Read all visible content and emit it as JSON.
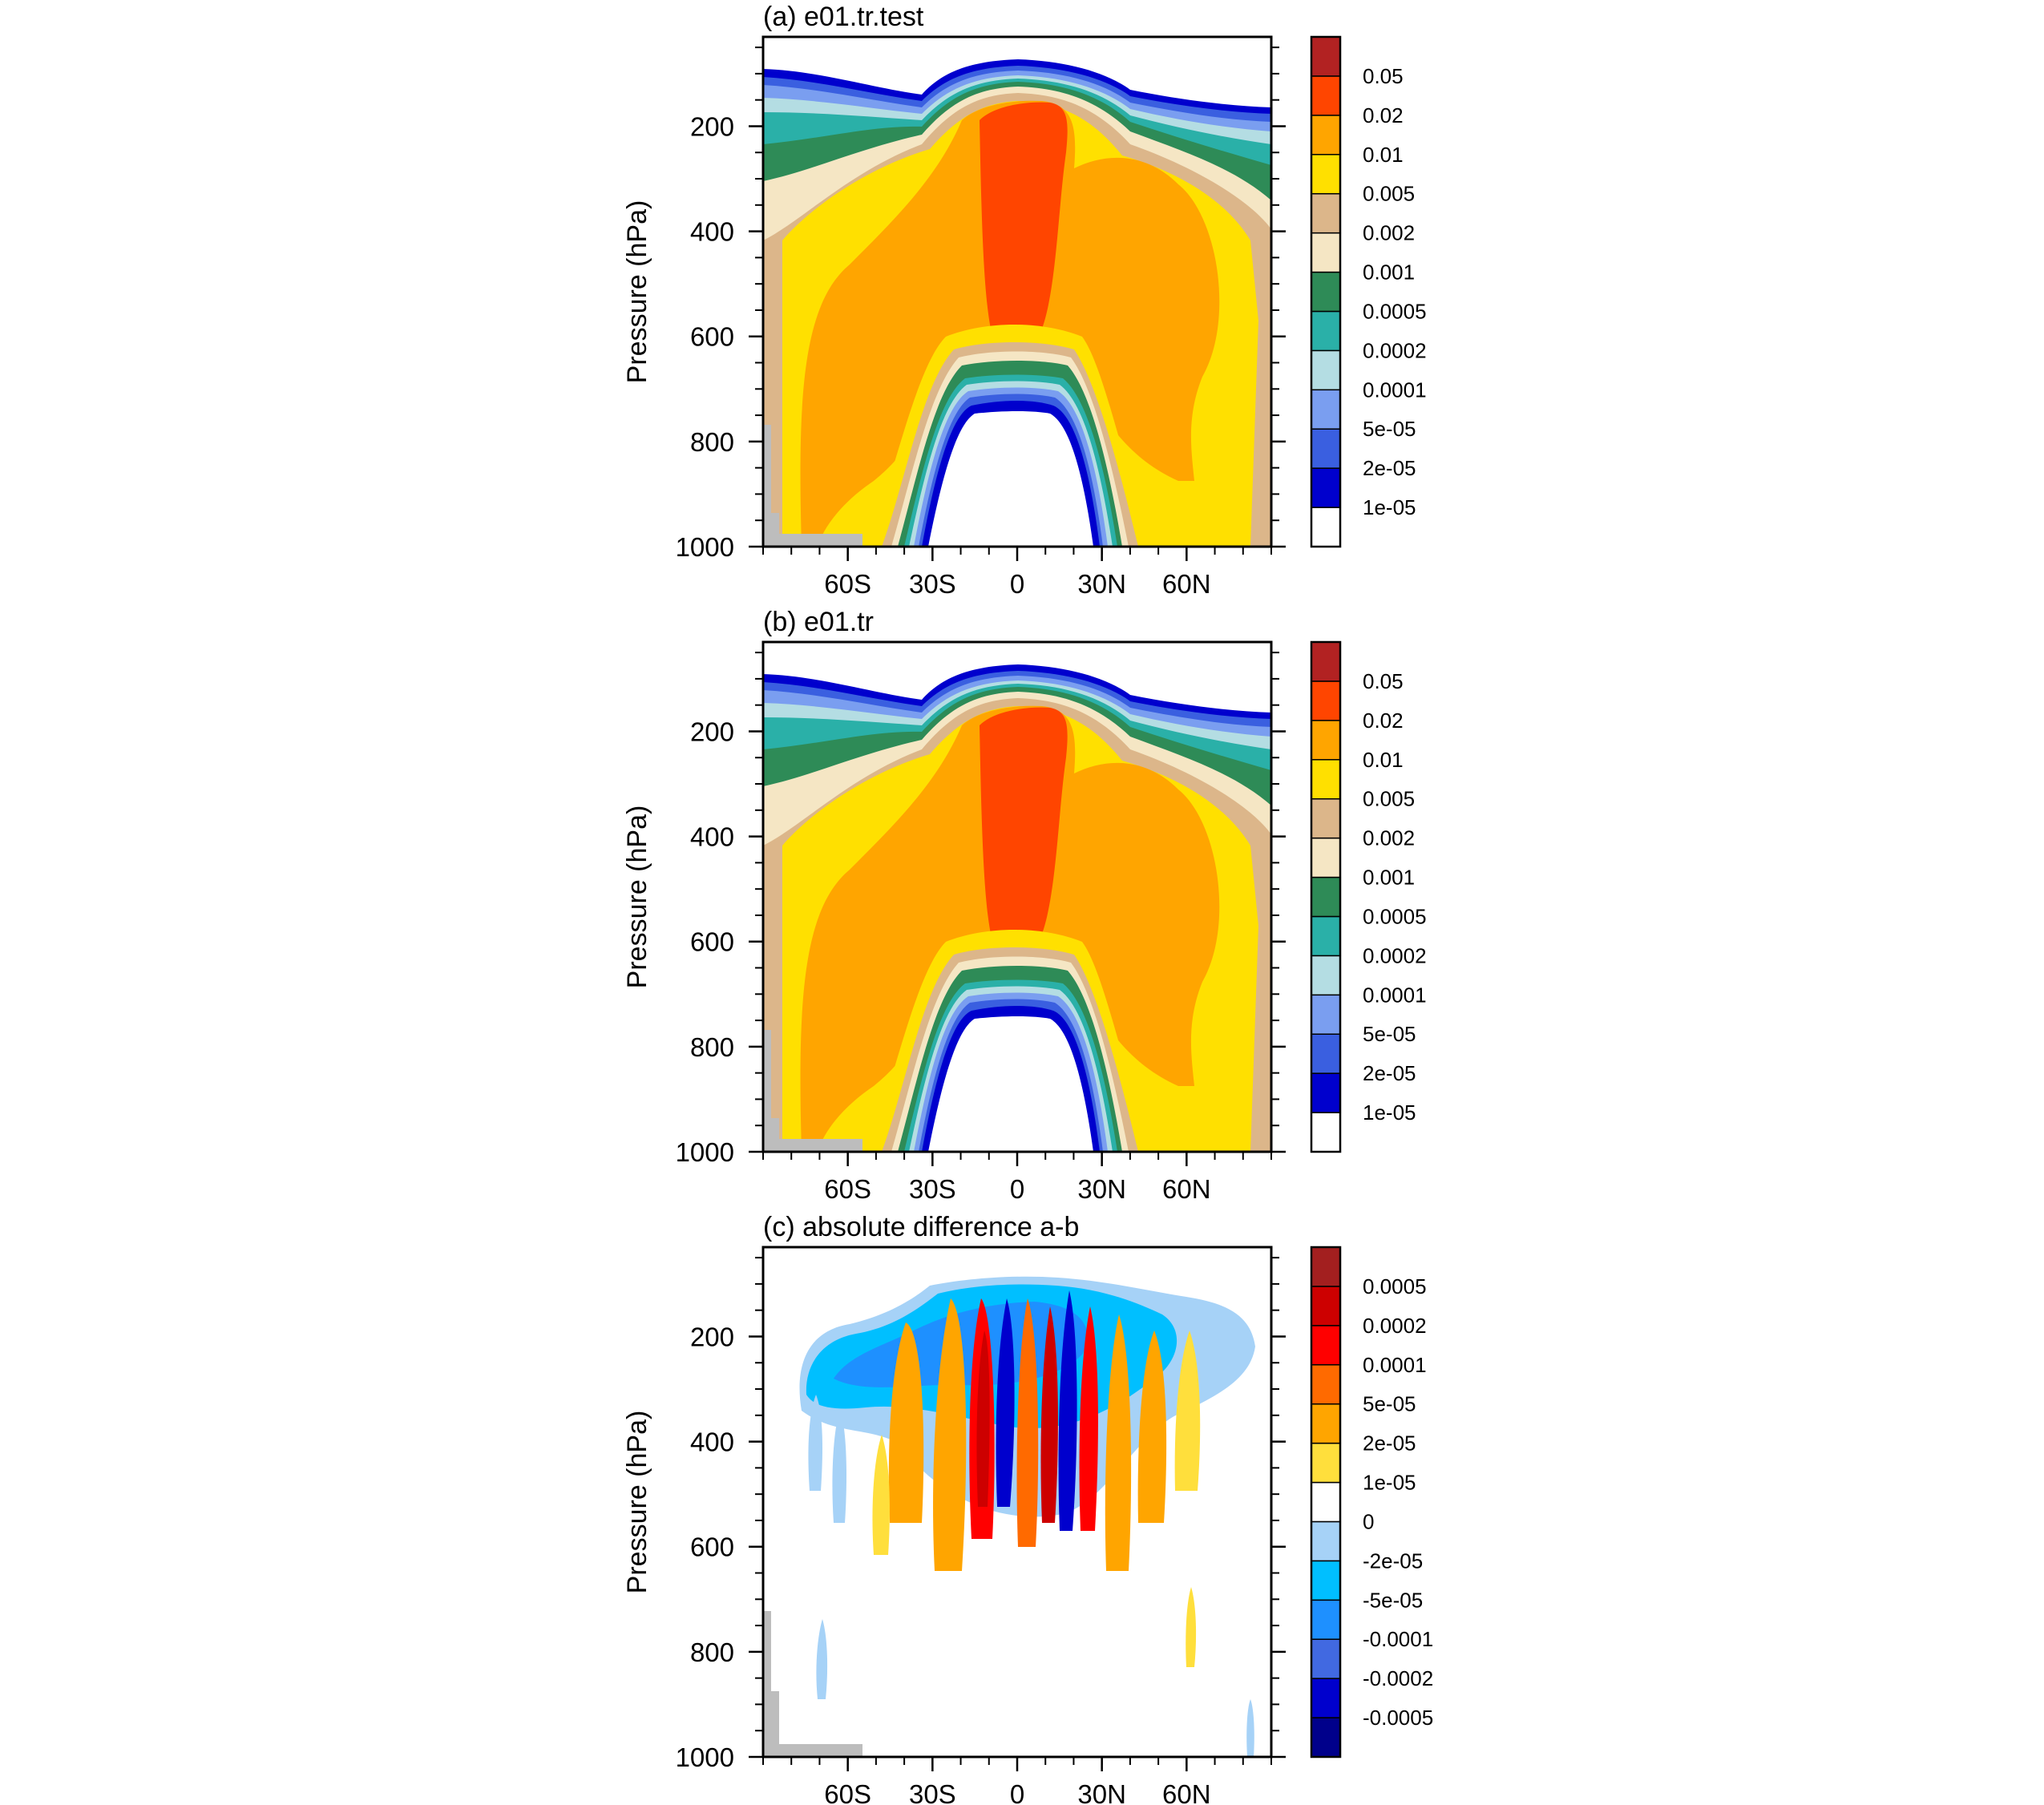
{
  "colors": {
    "land": "#bdbdbd",
    "frame": "#000000"
  },
  "chart_data": [
    {
      "type": "heatmap",
      "panel_id": "a",
      "title": "(a) e01.tr.test",
      "xlabel": "",
      "ylabel": "Pressure (hPa)",
      "xlim": [
        -90,
        90
      ],
      "ylim": [
        1000,
        30
      ],
      "x_ticks": [
        {
          "value": -60,
          "label": "60S"
        },
        {
          "value": -30,
          "label": "30S"
        },
        {
          "value": 0,
          "label": "0"
        },
        {
          "value": 30,
          "label": "30N"
        },
        {
          "value": 60,
          "label": "60N"
        }
      ],
      "y_ticks": [
        {
          "value": 200,
          "label": "200"
        },
        {
          "value": 400,
          "label": "400"
        },
        {
          "value": 600,
          "label": "600"
        },
        {
          "value": 800,
          "label": "800"
        },
        {
          "value": 1000,
          "label": "1000"
        }
      ],
      "colorbar": {
        "colors": [
          "#ffffff",
          "#0000cd",
          "#3a5fe0",
          "#7a9ef0",
          "#b4dde3",
          "#2ab0a8",
          "#2e8b57",
          "#f5e6c4",
          "#dcb68a",
          "#ffe000",
          "#ffa500",
          "#ff4500",
          "#b22222"
        ],
        "labels": [
          "1e-05",
          "2e-05",
          "5e-05",
          "0.0001",
          "0.0002",
          "0.0005",
          "0.001",
          "0.002",
          "0.005",
          "0.01",
          "0.02",
          "0.05"
        ]
      }
    },
    {
      "type": "heatmap",
      "panel_id": "b",
      "title": "(b) e01.tr",
      "xlabel": "",
      "ylabel": "Pressure (hPa)",
      "xlim": [
        -90,
        90
      ],
      "ylim": [
        1000,
        30
      ],
      "x_ticks": [
        {
          "value": -60,
          "label": "60S"
        },
        {
          "value": -30,
          "label": "30S"
        },
        {
          "value": 0,
          "label": "0"
        },
        {
          "value": 30,
          "label": "30N"
        },
        {
          "value": 60,
          "label": "60N"
        }
      ],
      "y_ticks": [
        {
          "value": 200,
          "label": "200"
        },
        {
          "value": 400,
          "label": "400"
        },
        {
          "value": 600,
          "label": "600"
        },
        {
          "value": 800,
          "label": "800"
        },
        {
          "value": 1000,
          "label": "1000"
        }
      ],
      "colorbar": {
        "colors": [
          "#ffffff",
          "#0000cd",
          "#3a5fe0",
          "#7a9ef0",
          "#b4dde3",
          "#2ab0a8",
          "#2e8b57",
          "#f5e6c4",
          "#dcb68a",
          "#ffe000",
          "#ffa500",
          "#ff4500",
          "#b22222"
        ],
        "labels": [
          "1e-05",
          "2e-05",
          "5e-05",
          "0.0001",
          "0.0002",
          "0.0005",
          "0.001",
          "0.002",
          "0.005",
          "0.01",
          "0.02",
          "0.05"
        ]
      }
    },
    {
      "type": "heatmap",
      "panel_id": "c",
      "title": "(c) absolute difference a-b",
      "xlabel": "",
      "ylabel": "Pressure (hPa)",
      "xlim": [
        -90,
        90
      ],
      "ylim": [
        1000,
        30
      ],
      "x_ticks": [
        {
          "value": -60,
          "label": "60S"
        },
        {
          "value": -30,
          "label": "30S"
        },
        {
          "value": 0,
          "label": "0"
        },
        {
          "value": 30,
          "label": "30N"
        },
        {
          "value": 60,
          "label": "60N"
        }
      ],
      "y_ticks": [
        {
          "value": 200,
          "label": "200"
        },
        {
          "value": 400,
          "label": "400"
        },
        {
          "value": 600,
          "label": "600"
        },
        {
          "value": 800,
          "label": "800"
        },
        {
          "value": 1000,
          "label": "1000"
        }
      ],
      "colorbar": {
        "colors": [
          "#00008b",
          "#0000cd",
          "#4169e1",
          "#1e90ff",
          "#00bfff",
          "#a6d2f7",
          "#ffffff",
          "#ffdf3c",
          "#ffa500",
          "#ff6a00",
          "#ff0000",
          "#cd0000",
          "#a31f1f"
        ],
        "labels": [
          "-0.0005",
          "-0.0002",
          "-0.0001",
          "-5e-05",
          "-2e-05",
          "0",
          "1e-05",
          "2e-05",
          "5e-05",
          "0.0001",
          "0.0002",
          "0.0005"
        ]
      }
    }
  ]
}
